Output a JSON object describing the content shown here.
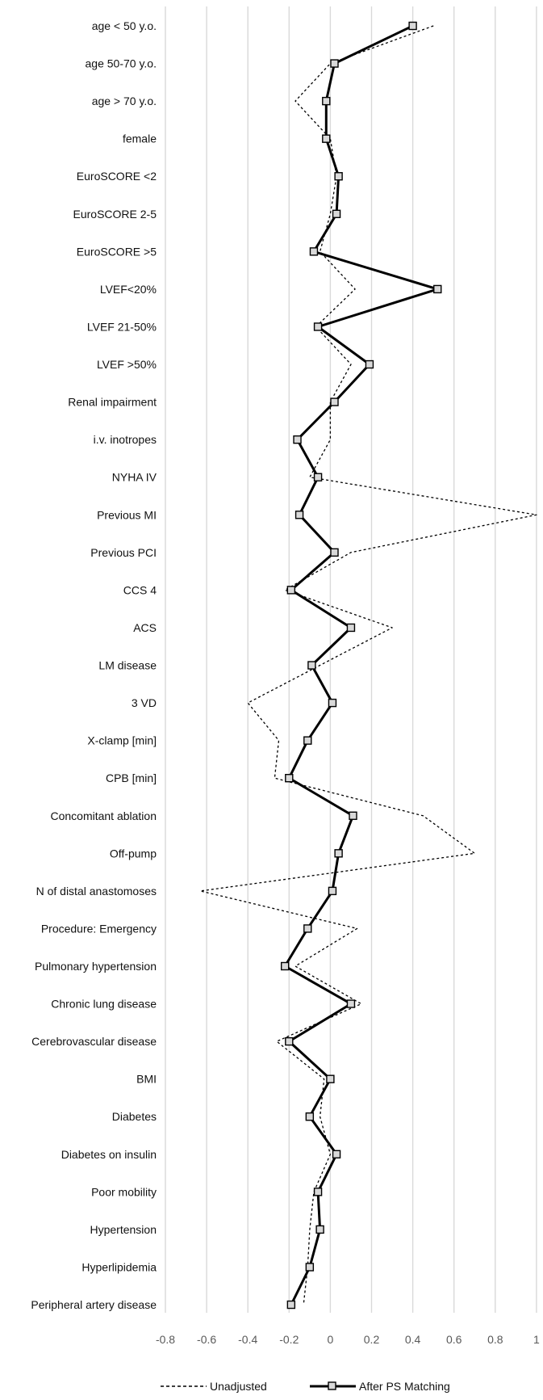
{
  "chart_data": {
    "type": "line",
    "orientation": "horizontal",
    "categories": [
      "age < 50 y.o.",
      "age 50-70 y.o.",
      "age > 70 y.o.",
      "female",
      "EuroSCORE <2",
      "EuroSCORE 2-5",
      "EuroSCORE >5",
      "LVEF<20%",
      "LVEF 21-50%",
      "LVEF >50%",
      "Renal impairment",
      "i.v. inotropes",
      "NYHA IV",
      "Previous MI",
      "Previous PCI",
      "CCS 4",
      "ACS",
      "LM disease",
      "3 VD",
      "X-clamp [min]",
      "CPB [min]",
      "Concomitant ablation",
      "Off-pump",
      "N of distal anastomoses",
      "Procedure: Emergency",
      "Pulmonary hypertension",
      "Chronic lung disease",
      "Cerebrovascular disease",
      "BMI",
      "Diabetes",
      "Diabetes on insulin",
      "Poor mobility",
      "Hypertension",
      "Hyperlipidemia",
      "Peripheral artery disease"
    ],
    "series": [
      {
        "name": "Unadjusted",
        "style": "dashed",
        "values": [
          0.5,
          0.0,
          -0.17,
          0.0,
          0.03,
          0.0,
          -0.05,
          0.12,
          -0.07,
          0.1,
          0.0,
          0.0,
          -0.1,
          1.0,
          0.1,
          -0.22,
          0.3,
          -0.05,
          -0.4,
          -0.25,
          -0.27,
          0.45,
          0.7,
          -0.63,
          0.13,
          -0.17,
          0.15,
          -0.26,
          -0.03,
          -0.05,
          0.0,
          -0.08,
          -0.1,
          -0.11,
          -0.13
        ]
      },
      {
        "name": "After PS Matching",
        "style": "solid",
        "marker": "square",
        "values": [
          0.4,
          0.02,
          -0.02,
          -0.02,
          0.04,
          0.03,
          -0.08,
          0.52,
          -0.06,
          0.19,
          0.02,
          -0.16,
          -0.06,
          -0.15,
          0.02,
          -0.19,
          0.1,
          -0.09,
          0.01,
          -0.11,
          -0.2,
          0.11,
          0.04,
          0.01,
          -0.11,
          -0.22,
          0.1,
          -0.2,
          0.0,
          -0.1,
          0.03,
          -0.06,
          -0.05,
          -0.1,
          -0.19
        ]
      }
    ],
    "x_ticks": [
      "-0.8",
      "-0.6",
      "-0.4",
      "-0.2",
      "0",
      "0.2",
      "0.4",
      "0.6",
      "0.8",
      "1"
    ],
    "xlim": [
      -0.8,
      1
    ],
    "grid": "vertical",
    "legend_position": "bottom",
    "title": "",
    "xlabel": "",
    "ylabel": ""
  }
}
